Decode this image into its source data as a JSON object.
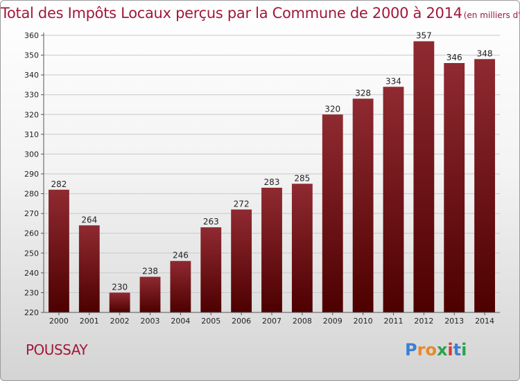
{
  "chart_data": {
    "type": "bar",
    "title": "Total des Impôts Locaux perçus par la Commune de 2000 à 2014",
    "unit": "(en milliers d'€)",
    "categories": [
      "2000",
      "2001",
      "2002",
      "2003",
      "2004",
      "2005",
      "2006",
      "2007",
      "2008",
      "2009",
      "2010",
      "2011",
      "2012",
      "2013",
      "2014"
    ],
    "values": [
      282,
      264,
      230,
      238,
      246,
      263,
      272,
      283,
      285,
      320,
      328,
      334,
      357,
      346,
      348
    ],
    "yticks": [
      220,
      230,
      240,
      250,
      260,
      270,
      280,
      290,
      300,
      310,
      320,
      330,
      340,
      350,
      360
    ],
    "ylim": [
      220,
      360
    ],
    "xlabel": "",
    "ylabel": "",
    "grid": true,
    "bar_color": "#8b1d22"
  },
  "commune": "POUSSAY",
  "logo": {
    "text": "Proxiti",
    "letters": [
      "P",
      "r",
      "o",
      "x",
      "i",
      "t",
      "i"
    ],
    "colors": [
      "#3a7fd5",
      "#e8892b",
      "#e8892b",
      "#2aa34a",
      "#d23a3a",
      "#3a7fd5",
      "#2aa34a"
    ]
  }
}
